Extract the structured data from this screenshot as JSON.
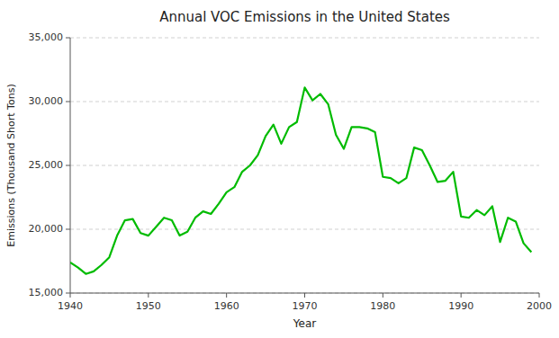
{
  "chart_data": {
    "type": "line",
    "title": "Annual VOC Emissions in the United States",
    "xlabel": "Year",
    "ylabel": "Emissions (Thousand Short Tons)",
    "color": "#00BB00",
    "grid": true,
    "xlim": [
      1940,
      2000
    ],
    "ylim": [
      15000,
      35000
    ],
    "xticks": [
      1940,
      1950,
      1960,
      1970,
      1980,
      1990,
      2000
    ],
    "yticks": [
      {
        "value": 15000,
        "label": "15,000"
      },
      {
        "value": 20000,
        "label": "20,000"
      },
      {
        "value": 25000,
        "label": "25,000"
      },
      {
        "value": 30000,
        "label": "30,000"
      },
      {
        "value": 35000,
        "label": "35,000"
      }
    ],
    "x": [
      1940,
      1941,
      1942,
      1943,
      1944,
      1945,
      1946,
      1947,
      1948,
      1949,
      1950,
      1951,
      1952,
      1953,
      1954,
      1955,
      1956,
      1957,
      1958,
      1959,
      1960,
      1961,
      1962,
      1963,
      1964,
      1965,
      1966,
      1967,
      1968,
      1969,
      1970,
      1971,
      1972,
      1973,
      1974,
      1975,
      1976,
      1977,
      1978,
      1979,
      1980,
      1981,
      1982,
      1983,
      1984,
      1985,
      1986,
      1987,
      1988,
      1989,
      1990,
      1991,
      1992,
      1993,
      1994,
      1995,
      1996,
      1997,
      1998,
      1999
    ],
    "values": [
      17400,
      17000,
      16500,
      16700,
      17200,
      17800,
      19500,
      20700,
      20800,
      19700,
      19500,
      20200,
      20900,
      20700,
      19500,
      19800,
      20900,
      21400,
      21200,
      22000,
      22900,
      23300,
      24500,
      25000,
      25800,
      27300,
      28200,
      26700,
      28000,
      28400,
      31100,
      30100,
      30600,
      29800,
      27400,
      26300,
      28000,
      28000,
      27900,
      27600,
      24100,
      24000,
      23600,
      24000,
      26400,
      26200,
      25000,
      23700,
      23800,
      24500,
      21000,
      20900,
      21500,
      21100,
      21800,
      19000,
      20900,
      20600,
      18900,
      18200
    ]
  }
}
